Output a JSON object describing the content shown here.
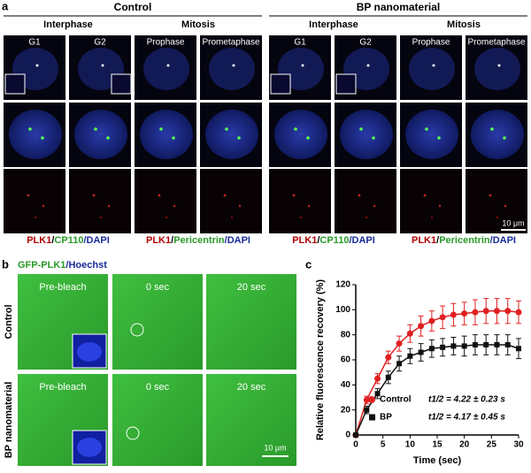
{
  "panel_a": {
    "label": "a",
    "groups": [
      {
        "title": "Control",
        "phases": [
          "Interphase",
          "Mitosis"
        ]
      },
      {
        "title": "BP nanomaterial",
        "phases": [
          "Interphase",
          "Mitosis"
        ]
      }
    ],
    "columns": [
      "G1",
      "G2",
      "Prophase",
      "Prometaphase",
      "G1",
      "G2",
      "Prophase",
      "Prometaphase"
    ],
    "captions": [
      [
        "PLK1",
        "/",
        "CP110",
        "/DAPI"
      ],
      [
        "PLK1",
        "/",
        "Pericentrin",
        "/DAPI"
      ],
      [
        "PLK1",
        "/",
        "CP110",
        "/DAPI"
      ],
      [
        "PLK1",
        "/",
        "Pericentrin",
        "/DAPI"
      ]
    ],
    "scale_bar": "10 μm"
  },
  "panel_b": {
    "label": "b",
    "title": [
      "GFP-PLK1",
      "/Hoechst"
    ],
    "columns": [
      "Pre-bleach",
      "0 sec",
      "20 sec"
    ],
    "rows": [
      "Control",
      "BP nanomaterial"
    ],
    "scale_bar": "10 μm"
  },
  "chart_data": {
    "type": "line",
    "label": "c",
    "x_label": "Time (sec)",
    "y_label": "Relative fluorescence recovery (%)",
    "x": [
      0,
      2,
      4,
      6,
      8,
      10,
      12,
      14,
      16,
      18,
      20,
      22,
      24,
      26,
      28,
      30
    ],
    "series": [
      {
        "name": "Control",
        "color": "#e02020",
        "marker": "circle",
        "values": [
          0,
          28,
          45,
          62,
          73,
          81,
          87,
          91,
          94,
          96,
          97,
          98,
          99,
          99,
          99,
          98
        ],
        "errors": [
          0,
          3,
          4,
          5,
          6,
          7,
          8,
          8,
          9,
          9,
          9,
          10,
          10,
          10,
          10,
          9
        ]
      },
      {
        "name": "BP",
        "color": "#111111",
        "marker": "square",
        "values": [
          0,
          20,
          33,
          46,
          57,
          63,
          66,
          69,
          70,
          71,
          71,
          72,
          72,
          72,
          72,
          69
        ],
        "errors": [
          0,
          3,
          4,
          5,
          6,
          6,
          7,
          7,
          7,
          7,
          8,
          8,
          8,
          8,
          8,
          8
        ]
      }
    ],
    "annotations": [
      "t1/2 = 4.22 ± 0.23 s",
      "t1/2 = 4.17 ± 0.45 s"
    ],
    "xlim": [
      0,
      30
    ],
    "xticks": [
      0,
      5,
      10,
      15,
      20,
      25,
      30
    ],
    "ylim": [
      0,
      120
    ],
    "yticks": [
      0,
      20,
      40,
      60,
      80,
      100,
      120
    ]
  }
}
